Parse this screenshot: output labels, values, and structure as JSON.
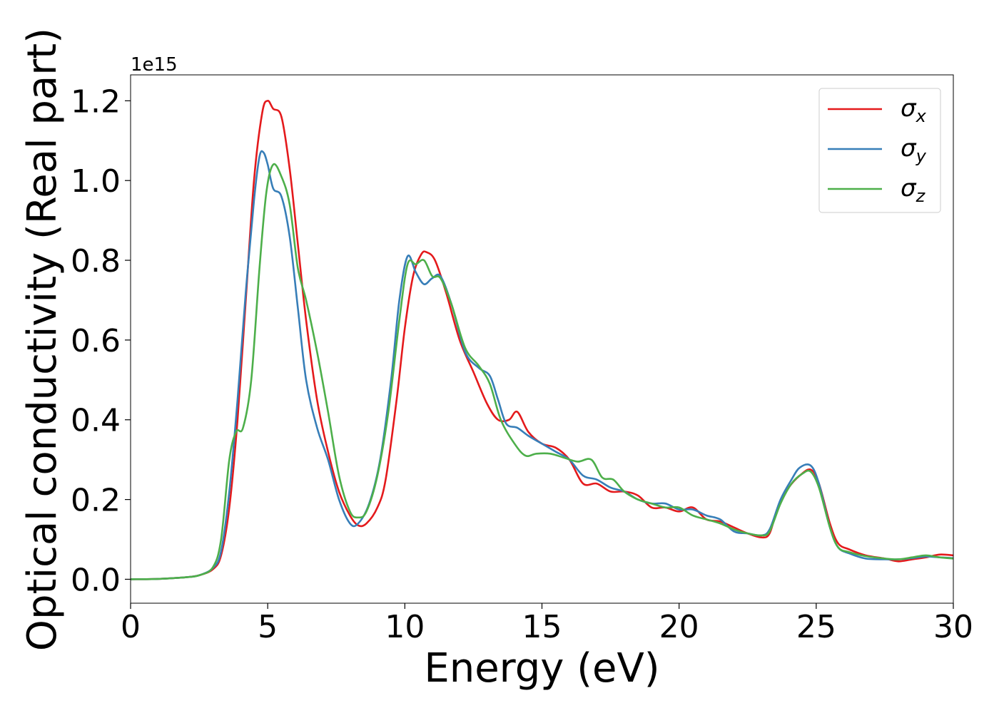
{
  "chart_data": {
    "type": "line",
    "xlabel": "Energy (eV)",
    "ylabel": "Optical conductivity (Real part)",
    "y_multiplier_label": "1e15",
    "xlim": [
      0,
      30
    ],
    "ylim": [
      -0.06,
      1.265
    ],
    "x_ticks": [
      0,
      5,
      10,
      15,
      20,
      25,
      30
    ],
    "x_tick_labels": [
      "0",
      "5",
      "10",
      "15",
      "20",
      "25",
      "30"
    ],
    "y_ticks": [
      0.0,
      0.2,
      0.4,
      0.6,
      0.8,
      1.0,
      1.2
    ],
    "y_tick_labels": [
      "0.0",
      "0.2",
      "0.4",
      "0.6",
      "0.8",
      "1.0",
      "1.2"
    ],
    "grid": false,
    "legend_position": "top-right",
    "series": [
      {
        "name": "σx",
        "legend_base": "σ",
        "legend_sub": "x",
        "color": "#e41a1c",
        "points": [
          [
            0,
            0.0
          ],
          [
            1,
            0.001
          ],
          [
            2,
            0.005
          ],
          [
            2.5,
            0.01
          ],
          [
            3,
            0.025
          ],
          [
            3.3,
            0.06
          ],
          [
            3.6,
            0.18
          ],
          [
            3.9,
            0.4
          ],
          [
            4.2,
            0.7
          ],
          [
            4.5,
            1.0
          ],
          [
            4.8,
            1.17
          ],
          [
            5.0,
            1.2
          ],
          [
            5.2,
            1.18
          ],
          [
            5.5,
            1.16
          ],
          [
            5.8,
            1.03
          ],
          [
            6.1,
            0.84
          ],
          [
            6.4,
            0.65
          ],
          [
            6.8,
            0.45
          ],
          [
            7.2,
            0.32
          ],
          [
            7.6,
            0.22
          ],
          [
            8.0,
            0.16
          ],
          [
            8.3,
            0.135
          ],
          [
            8.6,
            0.14
          ],
          [
            9.0,
            0.18
          ],
          [
            9.3,
            0.25
          ],
          [
            9.7,
            0.45
          ],
          [
            10.0,
            0.63
          ],
          [
            10.3,
            0.76
          ],
          [
            10.6,
            0.815
          ],
          [
            10.8,
            0.82
          ],
          [
            11.1,
            0.8
          ],
          [
            11.5,
            0.72
          ],
          [
            12.0,
            0.6
          ],
          [
            12.5,
            0.52
          ],
          [
            13.0,
            0.44
          ],
          [
            13.4,
            0.4
          ],
          [
            13.8,
            0.4
          ],
          [
            14.1,
            0.42
          ],
          [
            14.5,
            0.37
          ],
          [
            15.0,
            0.34
          ],
          [
            15.5,
            0.33
          ],
          [
            16.0,
            0.3
          ],
          [
            16.5,
            0.24
          ],
          [
            17.0,
            0.24
          ],
          [
            17.5,
            0.22
          ],
          [
            18.0,
            0.22
          ],
          [
            18.5,
            0.21
          ],
          [
            19.0,
            0.18
          ],
          [
            19.5,
            0.18
          ],
          [
            20.0,
            0.17
          ],
          [
            20.5,
            0.18
          ],
          [
            21.0,
            0.15
          ],
          [
            21.5,
            0.145
          ],
          [
            22.0,
            0.13
          ],
          [
            22.5,
            0.115
          ],
          [
            23.0,
            0.105
          ],
          [
            23.3,
            0.115
          ],
          [
            23.6,
            0.18
          ],
          [
            24.0,
            0.23
          ],
          [
            24.4,
            0.26
          ],
          [
            24.8,
            0.275
          ],
          [
            25.1,
            0.24
          ],
          [
            25.5,
            0.14
          ],
          [
            25.8,
            0.09
          ],
          [
            26.2,
            0.075
          ],
          [
            26.8,
            0.06
          ],
          [
            27.5,
            0.052
          ],
          [
            28.0,
            0.045
          ],
          [
            28.5,
            0.05
          ],
          [
            29.0,
            0.055
          ],
          [
            29.5,
            0.062
          ],
          [
            30.0,
            0.06
          ]
        ]
      },
      {
        "name": "σy",
        "legend_base": "σ",
        "legend_sub": "y",
        "color": "#377eb8",
        "points": [
          [
            0,
            0.0
          ],
          [
            1,
            0.001
          ],
          [
            2,
            0.005
          ],
          [
            2.5,
            0.01
          ],
          [
            3,
            0.028
          ],
          [
            3.3,
            0.07
          ],
          [
            3.6,
            0.22
          ],
          [
            3.9,
            0.45
          ],
          [
            4.2,
            0.72
          ],
          [
            4.5,
            0.95
          ],
          [
            4.7,
            1.06
          ],
          [
            4.85,
            1.07
          ],
          [
            5.0,
            1.04
          ],
          [
            5.2,
            0.98
          ],
          [
            5.5,
            0.96
          ],
          [
            5.8,
            0.86
          ],
          [
            6.1,
            0.68
          ],
          [
            6.4,
            0.5
          ],
          [
            6.8,
            0.38
          ],
          [
            7.2,
            0.3
          ],
          [
            7.6,
            0.2
          ],
          [
            8.0,
            0.14
          ],
          [
            8.3,
            0.14
          ],
          [
            8.7,
            0.19
          ],
          [
            9.1,
            0.3
          ],
          [
            9.5,
            0.5
          ],
          [
            9.8,
            0.7
          ],
          [
            10.1,
            0.81
          ],
          [
            10.4,
            0.77
          ],
          [
            10.7,
            0.74
          ],
          [
            11.0,
            0.755
          ],
          [
            11.3,
            0.76
          ],
          [
            11.7,
            0.69
          ],
          [
            12.2,
            0.57
          ],
          [
            12.7,
            0.53
          ],
          [
            13.1,
            0.51
          ],
          [
            13.4,
            0.45
          ],
          [
            13.7,
            0.39
          ],
          [
            14.1,
            0.38
          ],
          [
            14.5,
            0.36
          ],
          [
            15.0,
            0.34
          ],
          [
            15.5,
            0.32
          ],
          [
            16.0,
            0.3
          ],
          [
            16.5,
            0.26
          ],
          [
            17.0,
            0.25
          ],
          [
            17.5,
            0.23
          ],
          [
            18.0,
            0.22
          ],
          [
            18.5,
            0.2
          ],
          [
            19.0,
            0.19
          ],
          [
            19.5,
            0.19
          ],
          [
            20.0,
            0.175
          ],
          [
            20.5,
            0.175
          ],
          [
            21.0,
            0.16
          ],
          [
            21.5,
            0.15
          ],
          [
            22.0,
            0.12
          ],
          [
            22.5,
            0.115
          ],
          [
            23.0,
            0.11
          ],
          [
            23.3,
            0.125
          ],
          [
            23.7,
            0.2
          ],
          [
            24.1,
            0.25
          ],
          [
            24.4,
            0.28
          ],
          [
            24.8,
            0.285
          ],
          [
            25.1,
            0.24
          ],
          [
            25.5,
            0.13
          ],
          [
            25.8,
            0.08
          ],
          [
            26.2,
            0.065
          ],
          [
            26.8,
            0.052
          ],
          [
            27.5,
            0.05
          ],
          [
            28.0,
            0.05
          ],
          [
            28.5,
            0.053
          ],
          [
            29.0,
            0.057
          ],
          [
            29.5,
            0.055
          ],
          [
            30.0,
            0.053
          ]
        ]
      },
      {
        "name": "σz",
        "legend_base": "σ",
        "legend_sub": "z",
        "color": "#4daf4a",
        "points": [
          [
            0,
            0.0
          ],
          [
            1,
            0.001
          ],
          [
            2,
            0.005
          ],
          [
            2.5,
            0.01
          ],
          [
            3,
            0.03
          ],
          [
            3.3,
            0.1
          ],
          [
            3.6,
            0.3
          ],
          [
            3.85,
            0.37
          ],
          [
            4.1,
            0.38
          ],
          [
            4.4,
            0.5
          ],
          [
            4.7,
            0.78
          ],
          [
            4.95,
            0.97
          ],
          [
            5.2,
            1.04
          ],
          [
            5.5,
            1.01
          ],
          [
            5.8,
            0.94
          ],
          [
            6.1,
            0.78
          ],
          [
            6.4,
            0.7
          ],
          [
            6.8,
            0.57
          ],
          [
            7.2,
            0.42
          ],
          [
            7.6,
            0.26
          ],
          [
            8.0,
            0.17
          ],
          [
            8.3,
            0.155
          ],
          [
            8.6,
            0.17
          ],
          [
            9.0,
            0.26
          ],
          [
            9.4,
            0.42
          ],
          [
            9.8,
            0.65
          ],
          [
            10.1,
            0.79
          ],
          [
            10.4,
            0.79
          ],
          [
            10.7,
            0.8
          ],
          [
            11.0,
            0.76
          ],
          [
            11.3,
            0.755
          ],
          [
            11.7,
            0.69
          ],
          [
            12.2,
            0.58
          ],
          [
            12.7,
            0.535
          ],
          [
            13.1,
            0.49
          ],
          [
            13.5,
            0.4
          ],
          [
            14.0,
            0.34
          ],
          [
            14.4,
            0.31
          ],
          [
            14.8,
            0.315
          ],
          [
            15.3,
            0.315
          ],
          [
            15.8,
            0.305
          ],
          [
            16.3,
            0.295
          ],
          [
            16.8,
            0.3
          ],
          [
            17.2,
            0.255
          ],
          [
            17.6,
            0.25
          ],
          [
            18.0,
            0.22
          ],
          [
            18.5,
            0.2
          ],
          [
            19.0,
            0.19
          ],
          [
            19.5,
            0.18
          ],
          [
            20.0,
            0.18
          ],
          [
            20.5,
            0.16
          ],
          [
            21.0,
            0.15
          ],
          [
            21.5,
            0.14
          ],
          [
            22.0,
            0.125
          ],
          [
            22.5,
            0.115
          ],
          [
            23.0,
            0.11
          ],
          [
            23.3,
            0.12
          ],
          [
            23.7,
            0.19
          ],
          [
            24.1,
            0.24
          ],
          [
            24.5,
            0.265
          ],
          [
            24.8,
            0.27
          ],
          [
            25.1,
            0.23
          ],
          [
            25.5,
            0.13
          ],
          [
            25.8,
            0.08
          ],
          [
            26.2,
            0.068
          ],
          [
            26.8,
            0.058
          ],
          [
            27.5,
            0.052
          ],
          [
            28.0,
            0.05
          ],
          [
            28.5,
            0.055
          ],
          [
            29.0,
            0.06
          ],
          [
            29.5,
            0.055
          ],
          [
            30.0,
            0.052
          ]
        ]
      }
    ]
  }
}
